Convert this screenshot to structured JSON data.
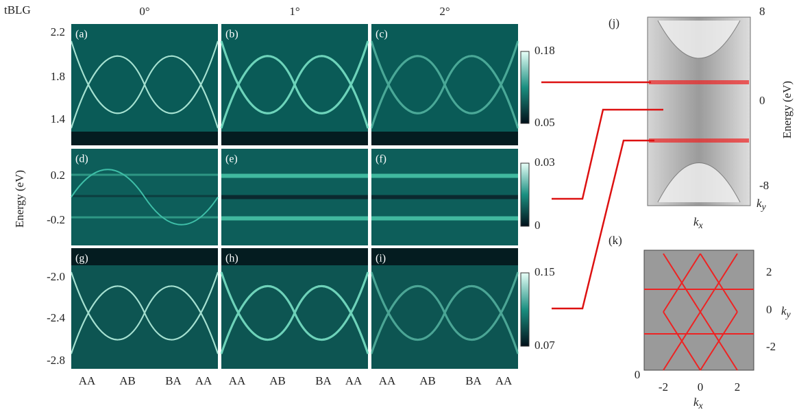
{
  "label": "tBLG",
  "y_axis_label": "Energy (eV)",
  "columns": [
    "0°",
    "1°",
    "2°"
  ],
  "x_ticks": [
    "AA",
    "AB",
    "BA",
    "AA"
  ],
  "rows": [
    {
      "panels": [
        "(a)",
        "(b)",
        "(c)"
      ],
      "yticks": [
        "2.2",
        "1.8",
        "1.4"
      ],
      "colorbar_ticks": [
        "0.18",
        "0.05"
      ]
    },
    {
      "panels": [
        "(d)",
        "(e)",
        "(f)"
      ],
      "yticks": [
        "0.2",
        "-0.2"
      ],
      "colorbar_ticks": [
        "0.03",
        "0"
      ]
    },
    {
      "panels": [
        "(g)",
        "(h)",
        "(i)"
      ],
      "yticks": [
        "-2.0",
        "-2.4",
        "-2.8"
      ],
      "colorbar_ticks": [
        "0.15",
        "0.07"
      ]
    }
  ],
  "panel_j": {
    "label": "(j)",
    "energy_ticks": [
      "8",
      "0",
      "-8"
    ],
    "axis_label": "Energy (eV)",
    "kx": [
      "k",
      "x"
    ],
    "ky": [
      "k",
      "y"
    ]
  },
  "panel_k": {
    "label": "(k)",
    "y_ticks": [
      "2",
      "0",
      "-2"
    ],
    "x_ticks": [
      "-2",
      "0",
      "2"
    ],
    "corner": "0",
    "kx": [
      "k",
      "x"
    ],
    "ky": [
      "k",
      "y"
    ]
  }
}
